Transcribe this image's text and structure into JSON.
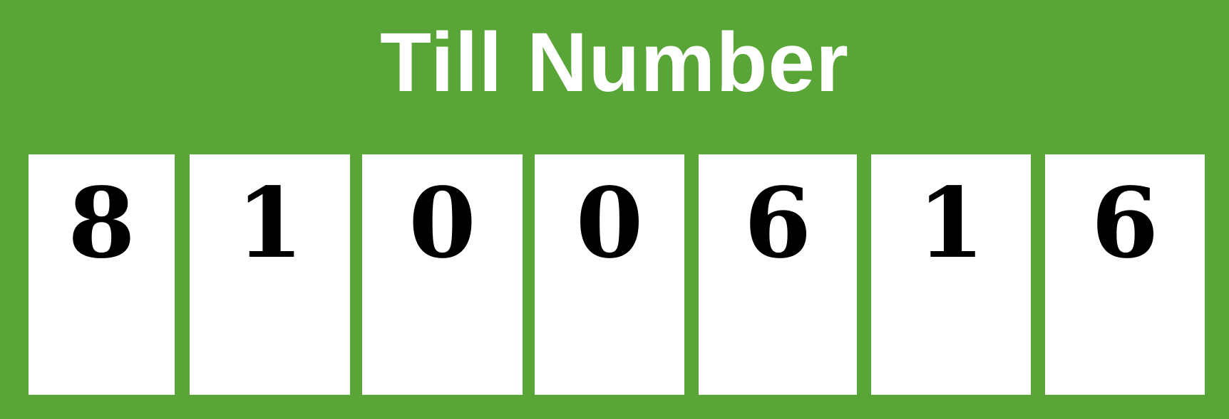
{
  "title": "Till Number",
  "digits": [
    "8",
    "1",
    "0",
    "0",
    "6",
    "1",
    "6"
  ],
  "colors": {
    "background": "#5aa537",
    "title_text": "#ffffff",
    "box": "#ffffff",
    "digit_text": "#000000"
  }
}
